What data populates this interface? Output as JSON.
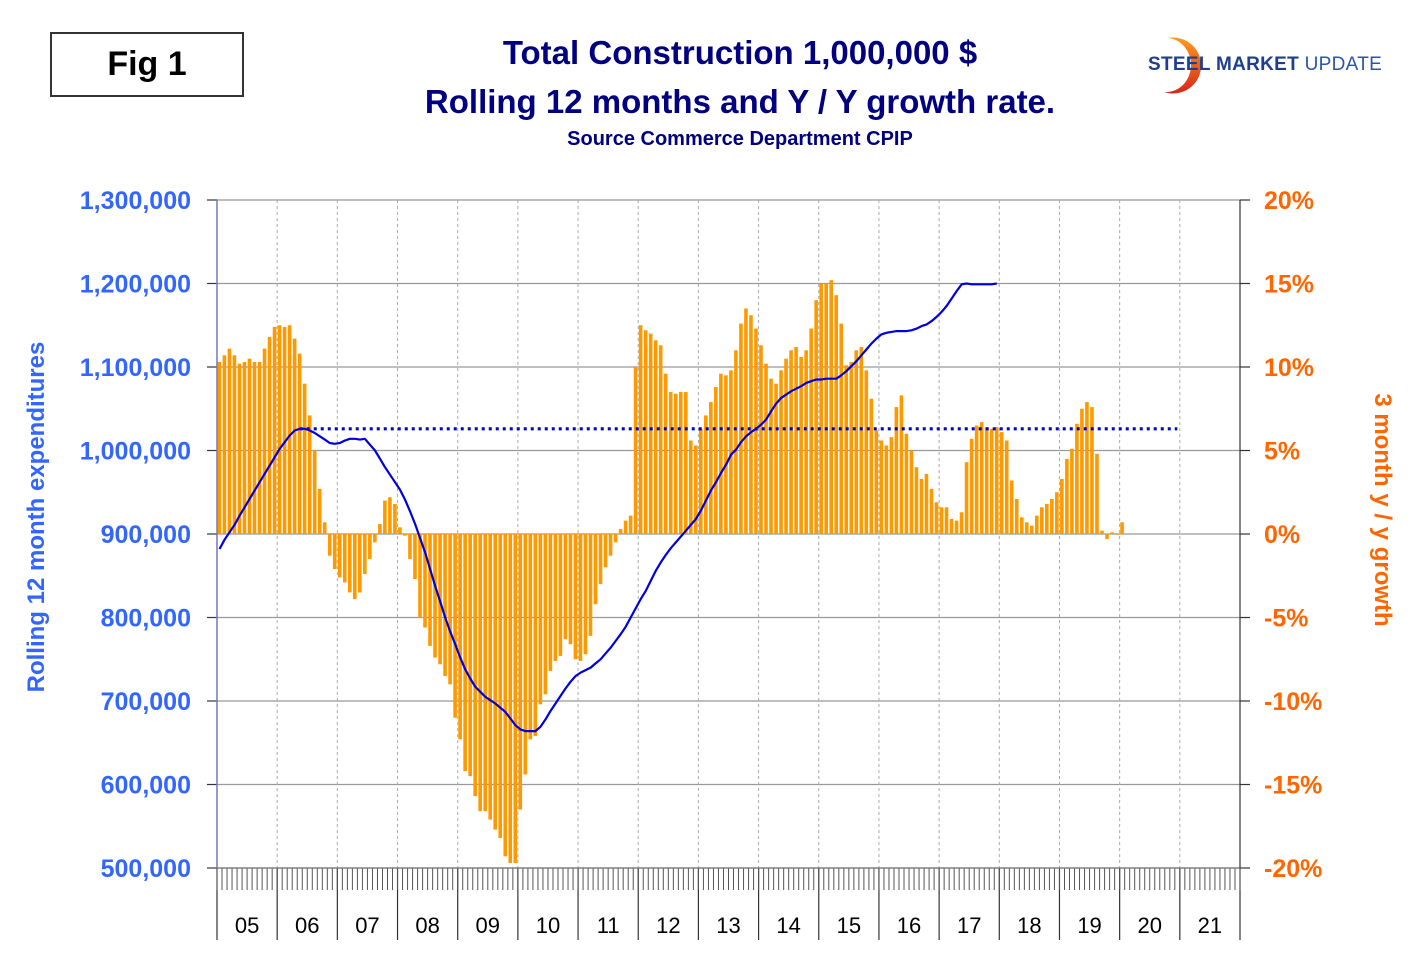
{
  "figure_label": "Fig 1",
  "logo": {
    "bold": "STEEL MARKET",
    "light": "UPDATE"
  },
  "colors": {
    "bars": "#ff9900",
    "line": "#0000dd",
    "left_axis": "#3366ff",
    "right_axis": "#ff6600",
    "title": "#000080"
  },
  "chart_data": {
    "type": "bar+line",
    "title": "Total Construction 1,000,000 $",
    "subtitle": "Rolling 12 months and Y / Y growth rate.",
    "source": "Source Commerce Department CPIP",
    "ylabel_left": "Rolling 12 month expenditures",
    "ylabel_right": "3 month y / y growth",
    "ylim_left": [
      500000,
      1300000
    ],
    "ylim_right": [
      -20,
      20
    ],
    "yticks_left": [
      "1,300,000",
      "1,200,000",
      "1,100,000",
      "1,000,000",
      "900,000",
      "800,000",
      "700,000",
      "600,000",
      "500,000"
    ],
    "yticks_right": [
      "20%",
      "15%",
      "10%",
      "5%",
      "0%",
      "-5%",
      "-10%",
      "-15%",
      "-20%"
    ],
    "xticks": [
      "05",
      "06",
      "07",
      "08",
      "09",
      "10",
      "11",
      "12",
      "13",
      "14",
      "15",
      "16",
      "17",
      "18",
      "19",
      "20",
      "21"
    ],
    "x_start": "2005-01",
    "x_months": 204,
    "grid": "horizontal solid, vertical dotted per year",
    "series": [
      {
        "name": "3 month y/y growth (%)",
        "axis": "right",
        "type": "bar",
        "values": [
          10.3,
          10.7,
          11.1,
          10.7,
          10.2,
          10.3,
          10.5,
          10.3,
          10.3,
          11.1,
          11.8,
          12.4,
          12.5,
          12.4,
          12.5,
          11.7,
          10.8,
          9.0,
          7.1,
          5.0,
          2.7,
          0.7,
          -1.3,
          -2.1,
          -2.6,
          -2.9,
          -3.5,
          -3.9,
          -3.5,
          -2.4,
          -1.5,
          -0.5,
          0.6,
          2.0,
          2.2,
          1.8,
          0.4,
          -0.1,
          -1.5,
          -2.7,
          -5.0,
          -5.6,
          -6.7,
          -7.4,
          -7.8,
          -8.5,
          -9.0,
          -11.0,
          -12.3,
          -14.2,
          -14.5,
          -15.7,
          -16.6,
          -16.6,
          -17.1,
          -17.7,
          -18.2,
          -19.3,
          -19.7,
          -19.7,
          -16.5,
          -14.4,
          -12.3,
          -12.1,
          -10.2,
          -9.6,
          -8.2,
          -7.6,
          -7.3,
          -6.3,
          -6.6,
          -7.5,
          -7.6,
          -7.2,
          -6.1,
          -4.2,
          -3.0,
          -2.0,
          -1.3,
          -0.5,
          0.3,
          0.8,
          1.1,
          10.0,
          12.5,
          12.2,
          12.0,
          11.6,
          11.3,
          9.6,
          8.5,
          8.4,
          8.5,
          8.5,
          5.6,
          5.3,
          6.3,
          7.1,
          7.9,
          8.8,
          9.6,
          9.5,
          9.8,
          11.0,
          12.6,
          13.5,
          13.1,
          12.3,
          11.3,
          10.2,
          9.3,
          9.0,
          9.8,
          10.5,
          11.0,
          11.2,
          10.6,
          11.0,
          12.3,
          14.0,
          15.0,
          15.0,
          15.2,
          14.3,
          12.6,
          10.1,
          10.3,
          11.0,
          11.2,
          9.8,
          8.1,
          6.2,
          5.6,
          5.3,
          5.8,
          7.6,
          8.3,
          6.0,
          5.0,
          4.0,
          3.3,
          3.6,
          2.7,
          1.9,
          1.6,
          1.6,
          0.9,
          0.8,
          1.3,
          4.3,
          5.7,
          6.5,
          6.7,
          6.4,
          6.3,
          6.4,
          6.1,
          5.6,
          3.2,
          2.1,
          1.0,
          0.7,
          0.5,
          1.1,
          1.6,
          1.8,
          2.1,
          2.5,
          3.3,
          4.5,
          5.1,
          6.6,
          7.5,
          7.9,
          7.6,
          4.8,
          0.2,
          -0.3,
          0.1,
          0.0,
          0.7
        ]
      },
      {
        "name": "Rolling 12 month expenditures ($M)",
        "axis": "left",
        "type": "line",
        "values": [
          882000,
          893000,
          902000,
          911000,
          922000,
          932000,
          942000,
          952000,
          962000,
          972000,
          982000,
          992000,
          1002000,
          1010000,
          1018000,
          1024000,
          1026000,
          1026000,
          1024000,
          1021000,
          1017000,
          1013000,
          1009000,
          1008000,
          1009000,
          1012000,
          1014000,
          1014000,
          1013000,
          1014000,
          1007000,
          1000000,
          990000,
          980000,
          971000,
          962000,
          953000,
          941000,
          927000,
          912000,
          895000,
          878000,
          858000,
          838000,
          819000,
          800000,
          783000,
          768000,
          752000,
          738000,
          727000,
          717000,
          711000,
          705000,
          701000,
          697000,
          692000,
          687000,
          679000,
          671000,
          666000,
          664000,
          664000,
          664000,
          669000,
          678000,
          688000,
          697000,
          706000,
          715000,
          723000,
          730000,
          734000,
          737000,
          740000,
          745000,
          750000,
          757000,
          764000,
          772000,
          780000,
          789000,
          800000,
          811000,
          822000,
          832000,
          844000,
          856000,
          866000,
          875000,
          883000,
          890000,
          897000,
          904000,
          911000,
          918000,
          928000,
          940000,
          952000,
          962000,
          973000,
          983000,
          995000,
          1001000,
          1010000,
          1017000,
          1022000,
          1026000,
          1031000,
          1037000,
          1047000,
          1056000,
          1063000,
          1067000,
          1071000,
          1074000,
          1077000,
          1081000,
          1083000,
          1085000,
          1085000,
          1086000,
          1086000,
          1086000,
          1090000,
          1095000,
          1101000,
          1107000,
          1114000,
          1121000,
          1128000,
          1134000,
          1139000,
          1141000,
          1142000,
          1143000,
          1143000,
          1143000,
          1144000,
          1146000,
          1149000,
          1151000,
          1155000,
          1160000,
          1166000,
          1173000,
          1182000,
          1191000,
          1199000,
          1200000,
          1199000,
          1199000,
          1199000,
          1199000,
          1199000,
          1200000
        ]
      },
      {
        "name": "Reference level (previous peak)",
        "axis": "left",
        "type": "dotted-line",
        "value": 1026000,
        "from": "2006-05",
        "to": "2020-12"
      }
    ]
  }
}
